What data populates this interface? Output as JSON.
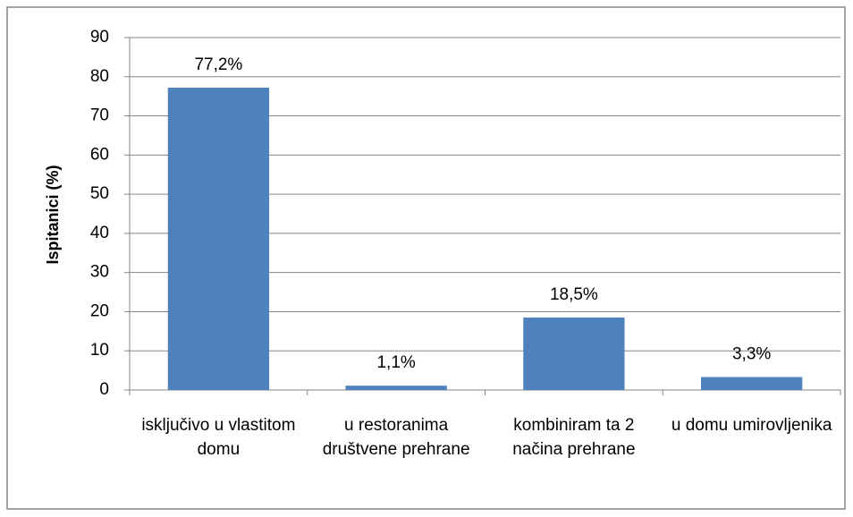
{
  "chart_data": {
    "type": "bar",
    "y_label": "Ispitanici (%)",
    "categories": [
      "isključivo u vlastitom domu",
      "u restoranima društvene prehrane",
      "kombiniram ta 2 načina prehrane",
      "u domu umirovljenika"
    ],
    "values": [
      77.2,
      1.1,
      18.5,
      3.3
    ],
    "value_labels": [
      "77,2%",
      "1,1%",
      "18,5%",
      "3,3%"
    ],
    "color": "#4f81bd",
    "ylim": [
      0,
      90
    ],
    "yticks": [
      0,
      10,
      20,
      30,
      40,
      50,
      60,
      70,
      80,
      90
    ],
    "grid": true
  }
}
